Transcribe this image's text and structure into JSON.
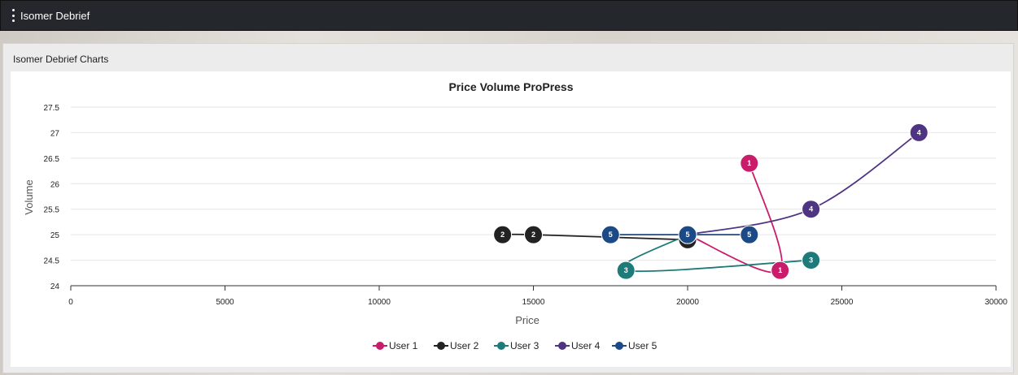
{
  "app": {
    "title": "Isomer Debrief",
    "menu_icon": "kebab-menu-icon"
  },
  "panel": {
    "title": "Isomer Debrief Charts"
  },
  "chart_data": {
    "type": "line",
    "title": "Price Volume ProPress",
    "xlabel": "Price",
    "ylabel": "Volume",
    "xlim": [
      0,
      30000
    ],
    "ylim": [
      24,
      27.5
    ],
    "xticks": [
      0,
      5000,
      10000,
      15000,
      20000,
      25000,
      30000
    ],
    "yticks": [
      24,
      24.5,
      25,
      25.5,
      26,
      26.5,
      27,
      27.5
    ],
    "grid": true,
    "legend_position": "bottom",
    "series": [
      {
        "name": "User 1",
        "color": "#c91d6b",
        "label": "1",
        "points": [
          [
            22000,
            26.4
          ],
          [
            23000,
            24.3
          ],
          [
            20000,
            25
          ]
        ]
      },
      {
        "name": "User 2",
        "color": "#222222",
        "label": "2",
        "points": [
          [
            14000,
            25
          ],
          [
            15000,
            25
          ],
          [
            20000,
            24.9
          ]
        ]
      },
      {
        "name": "User 3",
        "color": "#1f7a7a",
        "label": "3",
        "points": [
          [
            24000,
            24.5
          ],
          [
            18000,
            24.3
          ],
          [
            20000,
            25
          ]
        ]
      },
      {
        "name": "User 4",
        "color": "#503484",
        "label": "4",
        "points": [
          [
            20000,
            25
          ],
          [
            24000,
            25.5
          ],
          [
            27500,
            27
          ]
        ]
      },
      {
        "name": "User 5",
        "color": "#1b4a86",
        "label": "5",
        "points": [
          [
            17500,
            25
          ],
          [
            20000,
            25
          ],
          [
            22000,
            25
          ]
        ]
      }
    ]
  }
}
